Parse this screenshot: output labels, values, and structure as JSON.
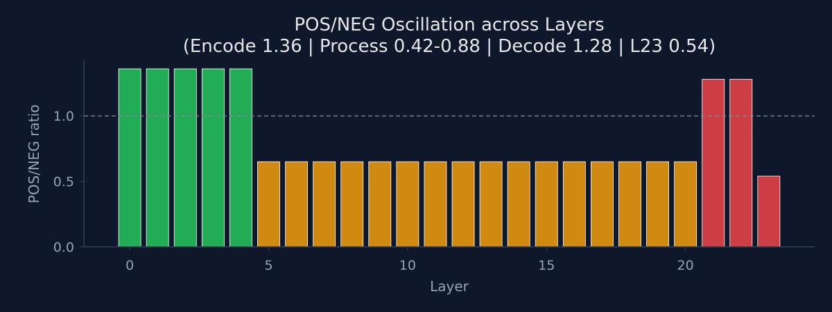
{
  "chart_data": {
    "type": "bar",
    "title": "POS/NEG Oscillation across Layers",
    "subtitle": "(Encode 1.36 | Process 0.42-0.88 | Decode 1.28 | L23 0.54)",
    "xlabel": "Layer",
    "ylabel": "POS/NEG ratio",
    "x": [
      0,
      1,
      2,
      3,
      4,
      5,
      6,
      7,
      8,
      9,
      10,
      11,
      12,
      13,
      14,
      15,
      16,
      17,
      18,
      19,
      20,
      21,
      22,
      23
    ],
    "values": [
      1.36,
      1.36,
      1.36,
      1.36,
      1.36,
      0.65,
      0.65,
      0.65,
      0.65,
      0.65,
      0.65,
      0.65,
      0.65,
      0.65,
      0.65,
      0.65,
      0.65,
      0.65,
      0.65,
      0.65,
      0.65,
      1.28,
      1.28,
      0.54
    ],
    "bar_colors": [
      "#22ac55",
      "#22ac55",
      "#22ac55",
      "#22ac55",
      "#22ac55",
      "#d08a12",
      "#d08a12",
      "#d08a12",
      "#d08a12",
      "#d08a12",
      "#d08a12",
      "#d08a12",
      "#d08a12",
      "#d08a12",
      "#d08a12",
      "#d08a12",
      "#d08a12",
      "#d08a12",
      "#d08a12",
      "#d08a12",
      "#d08a12",
      "#cc3e43",
      "#cc3e43",
      "#cc3e43"
    ],
    "xlim": [
      -1.65,
      24.65
    ],
    "ylim": [
      0,
      1.43
    ],
    "xticks": [
      0,
      5,
      10,
      15,
      20
    ],
    "yticks": [
      0.0,
      0.5,
      1.0
    ],
    "ytick_labels": [
      "0.0",
      "0.5",
      "1.0"
    ],
    "reference_line": 1.0,
    "grid": false,
    "colors": {
      "background": "#0f172a",
      "axis": "#334155",
      "text": "#94a3b8",
      "title": "#e5e7eb",
      "reference_line": "#7c8797",
      "bar_edge": "#ffffff"
    }
  }
}
